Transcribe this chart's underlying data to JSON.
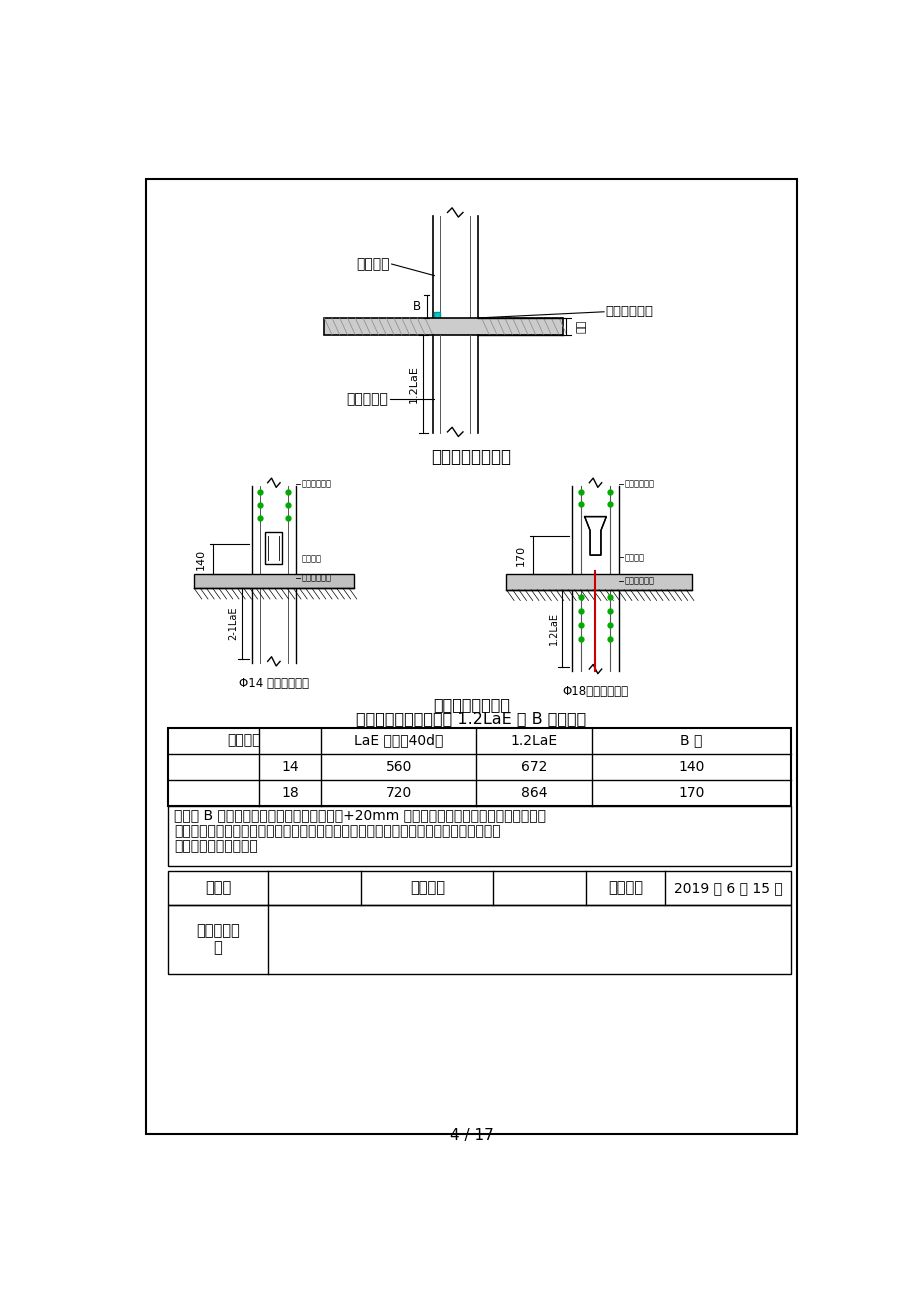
{
  "page_bg": "#ffffff",
  "border_color": "#000000",
  "title1": "转换层墙封头钢筋",
  "title2": "钢筋抗震基本锚固长度 1.2LaE 及 B 值统计表",
  "table_headers": [
    "钢筋规格",
    "LaE 长度（40d）",
    "1.2LaE",
    "B 值"
  ],
  "rows_data": [
    [
      "14",
      "560",
      "672",
      "140"
    ],
    [
      "18",
      "720",
      "864",
      "170"
    ]
  ],
  "note_lines": [
    "上图中 B 值为各种钢筋插入到套筒里的长度+20mm 取整，浇筑完转换层顶板混凝土之后，",
    "拉通线按照不同直径钢筋插入套筒内的长度对多余的钢筋用砂轮锯进行切割。插入钢筋套",
    "筒的长度具体见下表："
  ],
  "form_labels": [
    "交底人",
    "交底人数",
    "交底时间",
    "2019 年 6 月 15 日"
  ],
  "form_row2_label": "接受交底人\n员",
  "footer_text": "4 / 17",
  "diagram1_title": "转换层墙封头钢筋",
  "diagram1_label_precast": "预制墙体",
  "diagram1_label_floor": "楼层板顶标高",
  "diagram1_label_transfer": "转换层墙体",
  "diagram1_label_B": "B",
  "diagram1_label_lae": "1.2LaE",
  "diagram1_label_slab": "板厚",
  "diagram2_left_label1": "上层冷弯钢筋",
  "diagram2_left_label2": "灌浆孔道",
  "diagram2_left_label3": "楼板定位标高",
  "diagram2_left_dim": "140",
  "diagram2_left_caption": "Φ14 钢筋插筋大样",
  "diagram2_right_label1": "上层主筋钢筋",
  "diagram2_right_label2": "灌浆套筒",
  "diagram2_right_label3": "楼板定位标高",
  "diagram2_right_dim": "170",
  "diagram2_right_caption": "Φ18钢筋插筋大样",
  "diagram2_right_lae": "1.2LaE",
  "diagram2_left_lae": "2-1LaE"
}
